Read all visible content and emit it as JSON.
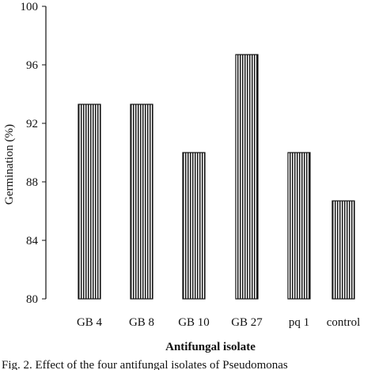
{
  "chart_data": {
    "type": "bar",
    "categories": [
      "GB 4",
      "GB 8",
      "GB 10",
      "GB 27",
      "pq 1",
      "control"
    ],
    "values": [
      93.3,
      93.3,
      90.0,
      96.7,
      90.0,
      86.7
    ],
    "xlabel": "Antifungal isolate",
    "ylabel": "Germination (%)",
    "ylim": [
      80,
      100
    ],
    "yticks": [
      80,
      84,
      88,
      92,
      96,
      100
    ],
    "bar_fill": "vertical-stripes",
    "bar_color": "#1a1a1a",
    "grid": false
  },
  "caption": "Fig. 2. Effect of the four antifungal isolates of Pseudomonas"
}
